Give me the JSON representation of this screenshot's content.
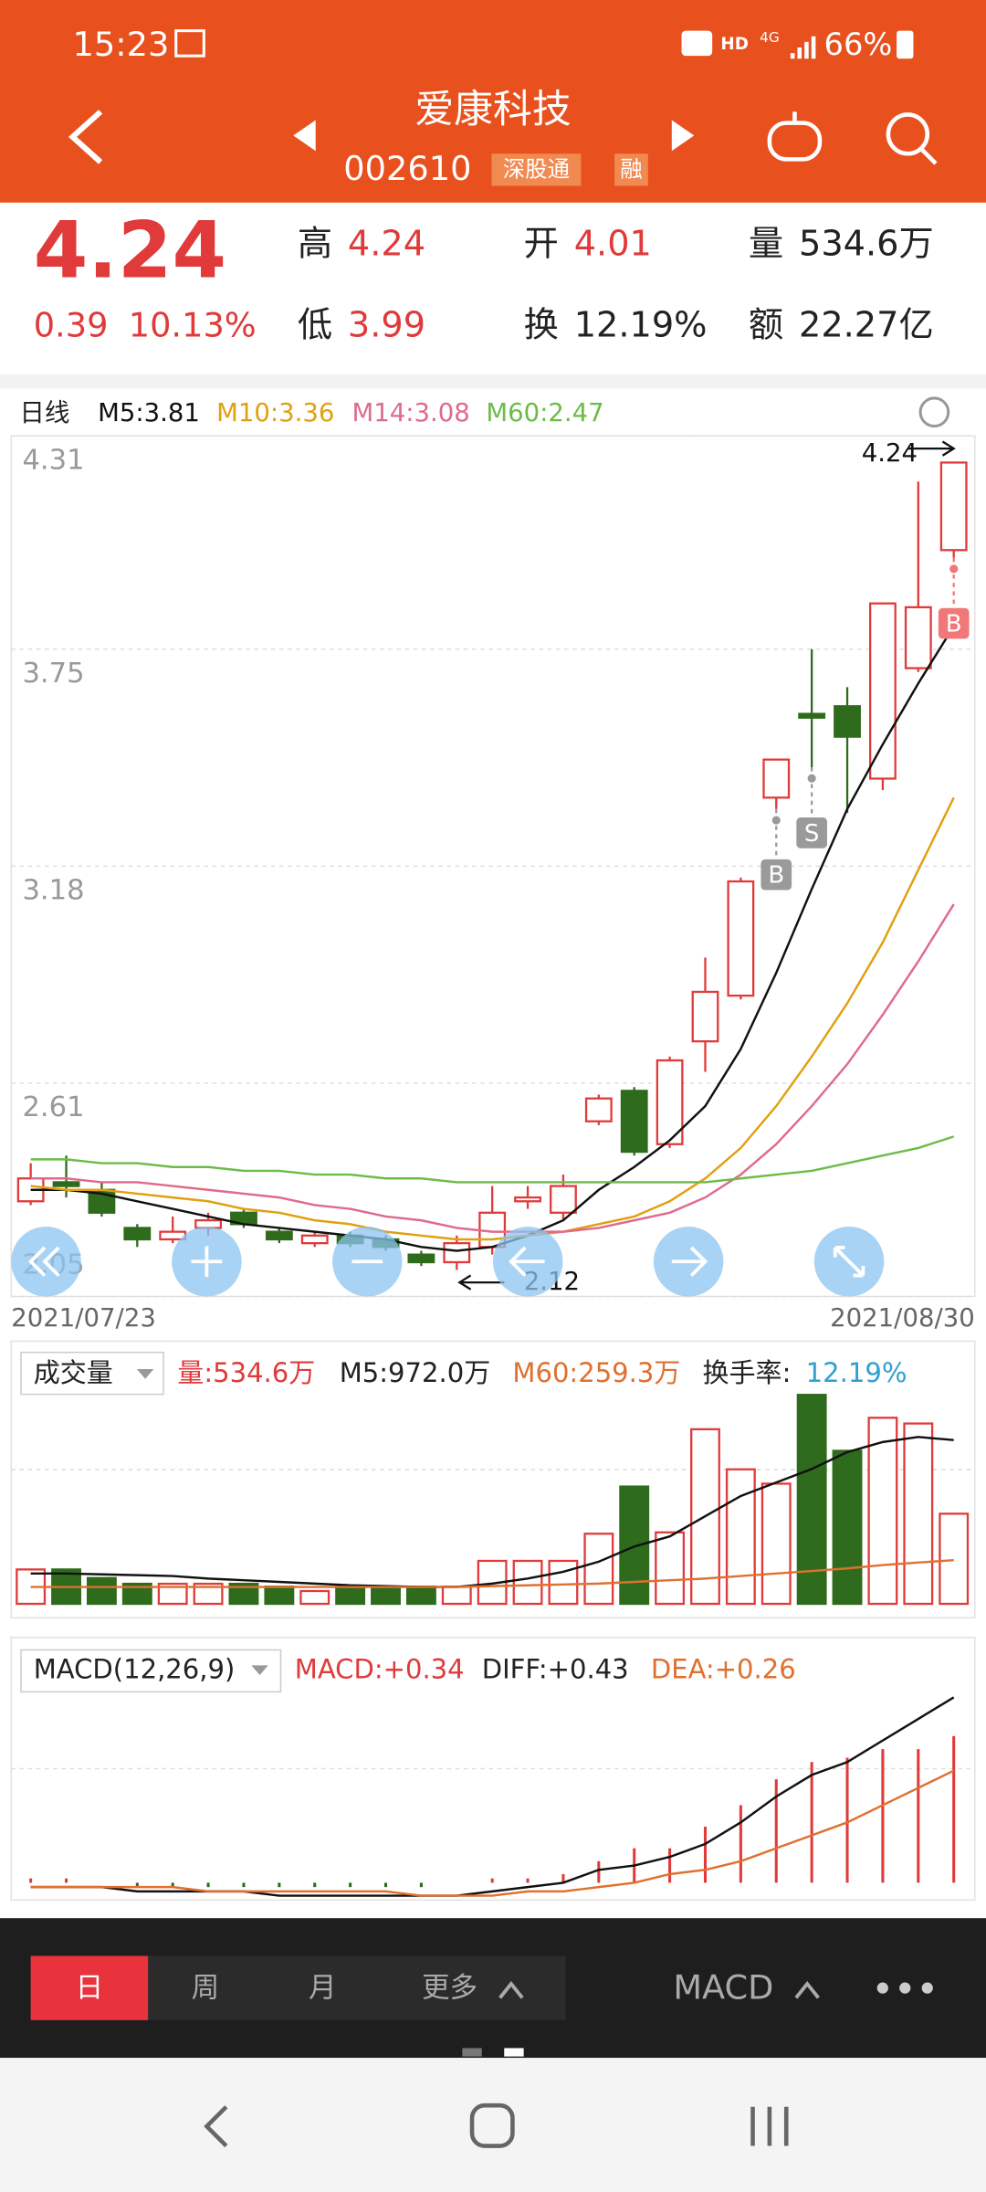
{
  "status_bar": {
    "time": "15:23",
    "hd": "HD",
    "network": "4G",
    "battery": "66%"
  },
  "header": {
    "title": "爱康科技",
    "code": "002610",
    "tags": [
      "深股通",
      "融"
    ]
  },
  "quote": {
    "price": "4.24",
    "change": "0.39",
    "change_pct": "10.13%",
    "stats": [
      {
        "label": "高",
        "value": "4.24",
        "color": "#e03a3a"
      },
      {
        "label": "低",
        "value": "3.99",
        "color": "#e03a3a"
      },
      {
        "label": "开",
        "value": "4.01",
        "color": "#e03a3a"
      },
      {
        "label": "换",
        "value": "12.19%",
        "color": "#222222"
      },
      {
        "label": "量",
        "value": "534.6万",
        "color": "#222222"
      },
      {
        "label": "额",
        "value": "22.27亿",
        "color": "#222222"
      }
    ]
  },
  "chart_data": [
    {
      "type": "candlestick",
      "period": "日线",
      "x_start": "2021/07/23",
      "x_end": "2021/08/30",
      "ylim": [
        2.05,
        4.31
      ],
      "yticks": [
        4.31,
        3.75,
        3.18,
        2.61,
        2.05
      ],
      "grid": true,
      "up_color": "#e03a3a",
      "down_color": "#2f6b1c",
      "open": [
        2.3,
        2.35,
        2.33,
        2.23,
        2.2,
        2.23,
        2.27,
        2.22,
        2.19,
        2.21,
        2.2,
        2.16,
        2.14,
        2.18,
        2.3,
        2.27,
        2.51,
        2.59,
        2.45,
        2.72,
        2.84,
        3.36,
        3.58,
        3.6,
        3.41,
        3.7,
        4.01
      ],
      "high": [
        2.4,
        2.42,
        2.35,
        2.24,
        2.26,
        2.27,
        2.28,
        2.23,
        2.22,
        2.22,
        2.21,
        2.17,
        2.21,
        2.34,
        2.34,
        2.37,
        2.58,
        2.6,
        2.68,
        2.94,
        3.15,
        3.46,
        3.75,
        3.65,
        3.87,
        4.19,
        4.24
      ],
      "low": [
        2.29,
        2.31,
        2.26,
        2.18,
        2.19,
        2.21,
        2.23,
        2.19,
        2.18,
        2.18,
        2.17,
        2.13,
        2.12,
        2.16,
        2.28,
        2.25,
        2.5,
        2.42,
        2.44,
        2.64,
        2.83,
        3.33,
        3.44,
        3.32,
        3.38,
        3.69,
        3.99
      ],
      "close": [
        2.36,
        2.34,
        2.27,
        2.2,
        2.22,
        2.25,
        2.24,
        2.2,
        2.21,
        2.19,
        2.18,
        2.14,
        2.19,
        2.27,
        2.31,
        2.34,
        2.57,
        2.43,
        2.67,
        2.85,
        3.14,
        3.46,
        3.57,
        3.52,
        3.87,
        3.86,
        4.24
      ],
      "ma": [
        {
          "name": "M5:3.81",
          "color": "#111111",
          "values": [
            2.33,
            2.33,
            2.32,
            2.3,
            2.28,
            2.26,
            2.24,
            2.23,
            2.22,
            2.21,
            2.2,
            2.18,
            2.17,
            2.18,
            2.21,
            2.25,
            2.33,
            2.39,
            2.46,
            2.55,
            2.7,
            2.9,
            3.12,
            3.33,
            3.5,
            3.66,
            3.81
          ]
        },
        {
          "name": "M10:3.36",
          "color": "#e0a010",
          "values": [
            2.34,
            2.33,
            2.33,
            2.32,
            2.31,
            2.3,
            2.28,
            2.27,
            2.25,
            2.24,
            2.22,
            2.21,
            2.2,
            2.2,
            2.21,
            2.22,
            2.24,
            2.26,
            2.3,
            2.36,
            2.44,
            2.55,
            2.68,
            2.82,
            2.98,
            3.17,
            3.36
          ]
        },
        {
          "name": "M14:3.08",
          "color": "#e06a8a",
          "values": [
            2.36,
            2.36,
            2.35,
            2.35,
            2.34,
            2.33,
            2.32,
            2.31,
            2.29,
            2.28,
            2.26,
            2.25,
            2.23,
            2.22,
            2.22,
            2.22,
            2.23,
            2.25,
            2.27,
            2.31,
            2.37,
            2.45,
            2.55,
            2.66,
            2.79,
            2.93,
            3.08
          ]
        },
        {
          "name": "M60:2.47",
          "color": "#6cbc48",
          "values": [
            2.41,
            2.41,
            2.4,
            2.4,
            2.39,
            2.39,
            2.38,
            2.38,
            2.37,
            2.37,
            2.36,
            2.36,
            2.35,
            2.35,
            2.35,
            2.35,
            2.35,
            2.35,
            2.35,
            2.35,
            2.36,
            2.37,
            2.38,
            2.4,
            2.42,
            2.44,
            2.47
          ]
        }
      ],
      "annotations": [
        {
          "label": "4.24",
          "value": 4.24,
          "of": "high"
        },
        {
          "label": "2.12",
          "value": 2.12,
          "of": "low"
        }
      ],
      "signals": [
        null,
        null,
        null,
        null,
        null,
        null,
        null,
        null,
        null,
        null,
        null,
        null,
        null,
        null,
        null,
        null,
        null,
        null,
        null,
        null,
        null,
        {
          "label": "B",
          "color": "#9a9a9a"
        },
        {
          "label": "S",
          "color": "#9a9a9a"
        },
        null,
        null,
        null,
        {
          "label": "B",
          "color": "#f07878"
        }
      ]
    },
    {
      "type": "volume",
      "label": "成交量",
      "volume_label": "量:534.6万",
      "turnover_label": "换手率:",
      "turnover": "12.19%",
      "ylim": [
        0,
        1260
      ],
      "values": [
        204,
        204,
        153,
        119,
        119,
        119,
        119,
        102,
        76,
        102,
        102,
        102,
        102,
        255,
        255,
        255,
        416,
        696,
        424,
        1036,
        798,
        713,
        1240,
        908,
        1104,
        1070,
        534.6
      ],
      "series": [
        {
          "name": "M5:972.0万",
          "color": "#111111",
          "values": [
            180,
            180,
            175,
            170,
            165,
            150,
            140,
            130,
            120,
            110,
            105,
            100,
            100,
            120,
            150,
            190,
            250,
            340,
            400,
            520,
            640,
            720,
            800,
            900,
            960,
            990,
            972.0
          ]
        },
        {
          "name": "M60:259.3万",
          "color": "#e07030",
          "values": [
            100,
            100,
            100,
            100,
            100,
            100,
            100,
            100,
            100,
            100,
            100,
            100,
            100,
            105,
            110,
            115,
            120,
            130,
            140,
            150,
            165,
            180,
            195,
            210,
            230,
            245,
            259.3
          ]
        }
      ]
    },
    {
      "type": "macd",
      "label": "MACD(12,26,9)",
      "name": "MACD:+0.34",
      "ylim": [
        -0.04,
        0.54
      ],
      "values": [
        0.01,
        0.01,
        0.0,
        -0.01,
        -0.01,
        -0.01,
        -0.01,
        -0.01,
        -0.01,
        -0.01,
        -0.01,
        -0.01,
        0.0,
        0.01,
        0.01,
        0.02,
        0.05,
        0.08,
        0.08,
        0.13,
        0.18,
        0.24,
        0.28,
        0.29,
        0.31,
        0.31,
        0.34
      ],
      "series": [
        {
          "name": "DIFF:+0.43",
          "color": "#111111",
          "values": [
            -0.01,
            -0.01,
            -0.01,
            -0.02,
            -0.02,
            -0.02,
            -0.02,
            -0.03,
            -0.03,
            -0.03,
            -0.03,
            -0.03,
            -0.03,
            -0.02,
            -0.01,
            0.0,
            0.03,
            0.04,
            0.06,
            0.09,
            0.14,
            0.2,
            0.25,
            0.28,
            0.33,
            0.38,
            0.43
          ]
        },
        {
          "name": "DEA:+0.26",
          "color": "#e07030",
          "values": [
            -0.01,
            -0.01,
            -0.01,
            -0.01,
            -0.01,
            -0.02,
            -0.02,
            -0.02,
            -0.02,
            -0.02,
            -0.02,
            -0.03,
            -0.03,
            -0.03,
            -0.02,
            -0.02,
            -0.01,
            0.0,
            0.02,
            0.03,
            0.05,
            0.08,
            0.11,
            0.14,
            0.18,
            0.22,
            0.26
          ]
        }
      ]
    }
  ],
  "tabs": [
    "日",
    "周",
    "月",
    "更多"
  ],
  "indicator": "MACD"
}
